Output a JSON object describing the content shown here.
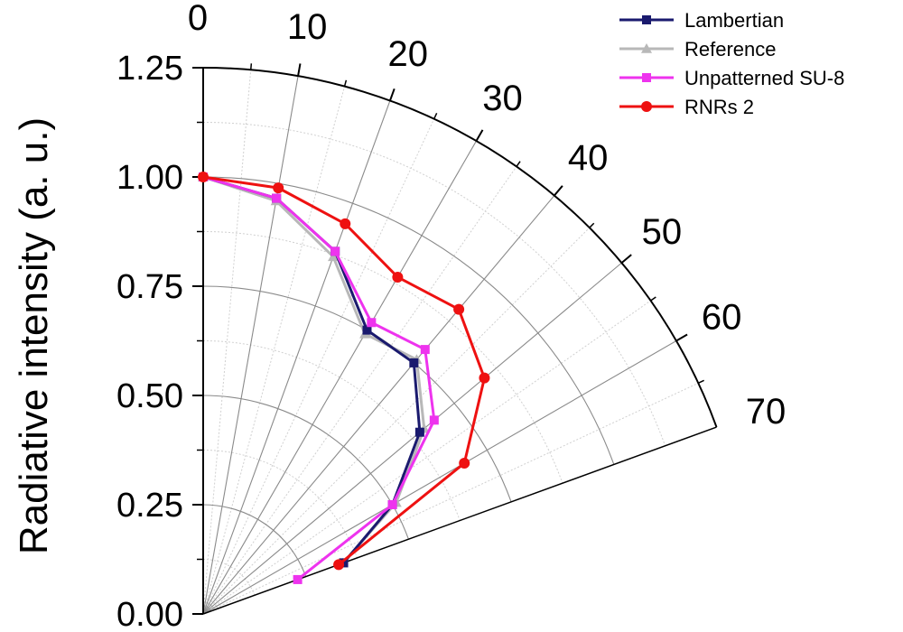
{
  "chart_data": {
    "type": "polar-line",
    "title": "",
    "angular_axis": {
      "unit": "degrees",
      "range": [
        0,
        70
      ],
      "ticks": [
        "0",
        "10",
        "20",
        "30",
        "40",
        "50",
        "60",
        "70"
      ]
    },
    "radial_axis": {
      "label": "Radiative intensity (a. u.)",
      "range": [
        0,
        1.25
      ],
      "ticks": [
        "0.00",
        "0.25",
        "0.50",
        "0.75",
        "1.00",
        "1.25"
      ]
    },
    "grid": true,
    "legend": {
      "position": "top-right",
      "entries": [
        "Lambertian",
        "Reference",
        "Unpatterned SU-8",
        "RNRs 2"
      ]
    },
    "x": [
      0,
      10,
      20,
      30,
      40,
      50,
      60,
      70
    ],
    "series": [
      {
        "name": "Lambertian",
        "color": "#1a1a6e",
        "marker": "square",
        "values": [
          1.0,
          0.966,
          0.883,
          0.75,
          0.75,
          0.647,
          0.5,
          0.342
        ]
      },
      {
        "name": "Reference",
        "color": "#b8b8b8",
        "marker": "triangle",
        "values": [
          1.0,
          0.96,
          0.87,
          0.74,
          0.76,
          0.66,
          0.51,
          0.34
        ]
      },
      {
        "name": "Unpatterned SU-8",
        "color": "#ee33ee",
        "marker": "square",
        "values": [
          1.0,
          0.966,
          0.883,
          0.77,
          0.79,
          0.69,
          0.5,
          0.23
        ]
      },
      {
        "name": "RNRs 2",
        "color": "#ee1111",
        "marker": "circle",
        "values": [
          1.0,
          0.99,
          0.95,
          0.89,
          0.91,
          0.84,
          0.69,
          0.33
        ]
      }
    ]
  }
}
